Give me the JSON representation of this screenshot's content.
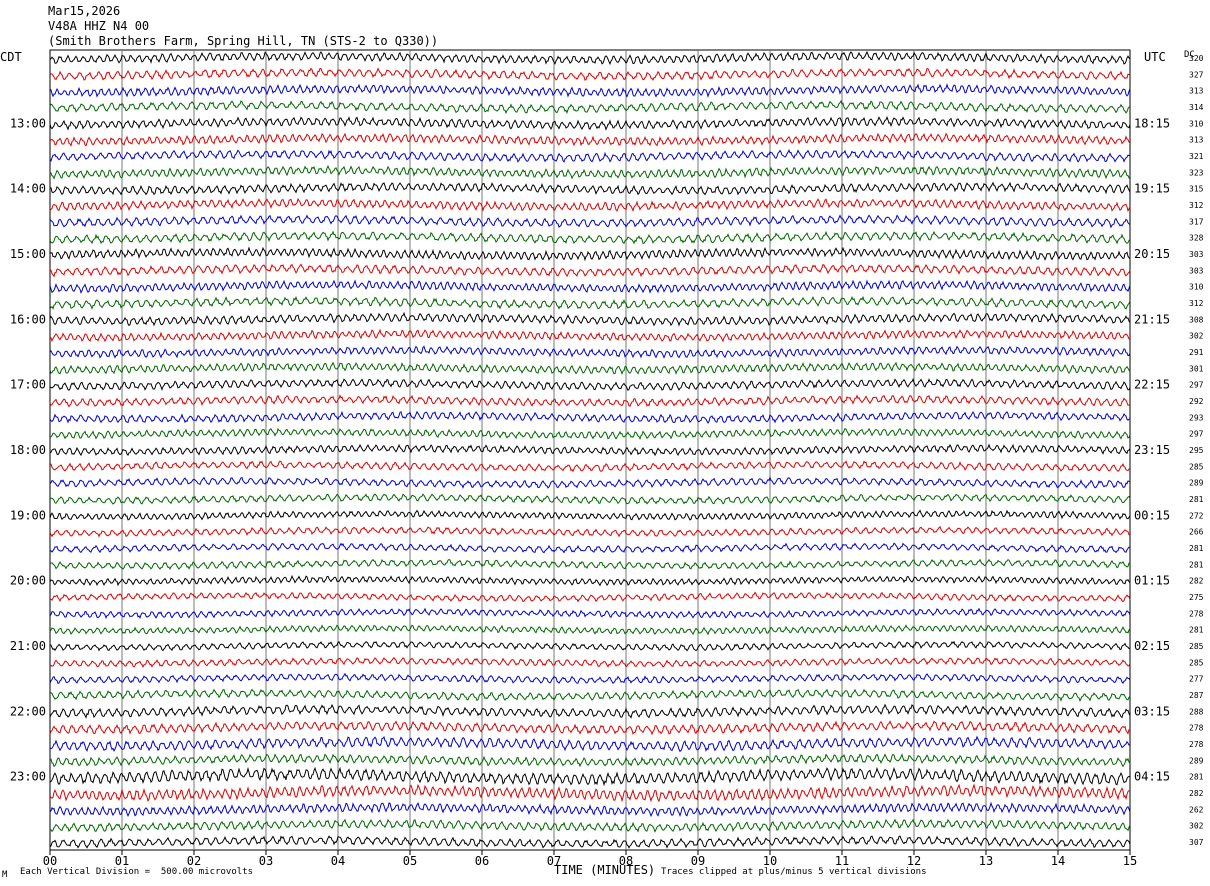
{
  "header": {
    "date": "Mar15,2026",
    "station": "V48A HHZ N4 00",
    "location": "(Smith Brothers Farm, Spring Hill, TN (STS-2 to Q330))"
  },
  "left_tz": "CDT",
  "right_tz": "UTC",
  "dc_label": "DC",
  "footer": {
    "scale": "Each Vertical Division =  500.00 microvolts",
    "clip": "Traces clipped at plus/minus 5 vertical divisions",
    "corner_mark": "M"
  },
  "colors": {
    "trace": [
      "#000000",
      "#dd0000",
      "#0000cc",
      "#006600"
    ],
    "grid": "#777777"
  },
  "chart_data": {
    "type": "line",
    "xlabel": "TIME (MINUTES)",
    "x_ticks": [
      "00",
      "01",
      "02",
      "03",
      "04",
      "05",
      "06",
      "07",
      "08",
      "09",
      "10",
      "11",
      "12",
      "13",
      "14",
      "15"
    ],
    "xlim": [
      0,
      15
    ],
    "rows_per_hour": 4,
    "left_hour_labels": [
      "13:00",
      "14:00",
      "15:00",
      "16:00",
      "17:00",
      "18:00",
      "19:00",
      "20:00",
      "21:00",
      "22:00",
      "23:00"
    ],
    "right_hour_labels": [
      "18:15",
      "19:15",
      "20:15",
      "21:15",
      "22:15",
      "23:15",
      "00:15",
      "01:15",
      "02:15",
      "03:15",
      "04:15"
    ],
    "dc_offsets": [
      320,
      327,
      313,
      314,
      310,
      313,
      321,
      323,
      315,
      312,
      317,
      328,
      303,
      303,
      310,
      312,
      308,
      302,
      291,
      301,
      297,
      292,
      293,
      297,
      295,
      285,
      289,
      281,
      272,
      266,
      281,
      281,
      282,
      275,
      278,
      281,
      285,
      285,
      277,
      287,
      288,
      278,
      278,
      289,
      281,
      282,
      262,
      302,
      307
    ],
    "noise_level": [
      3,
      3,
      3,
      3,
      3,
      3,
      3,
      3,
      3,
      3,
      3,
      3,
      3,
      3,
      3,
      3,
      3,
      2.8,
      2.8,
      2.8,
      2.8,
      2.8,
      2.8,
      2.6,
      2.6,
      2.6,
      2.6,
      2.5,
      2.4,
      2.4,
      2.4,
      2.4,
      2.3,
      2.3,
      2.3,
      2.3,
      2.3,
      2.3,
      2.4,
      2.8,
      3.2,
      3.2,
      3.6,
      3,
      4.2,
      4,
      3.2,
      3,
      3
    ]
  }
}
